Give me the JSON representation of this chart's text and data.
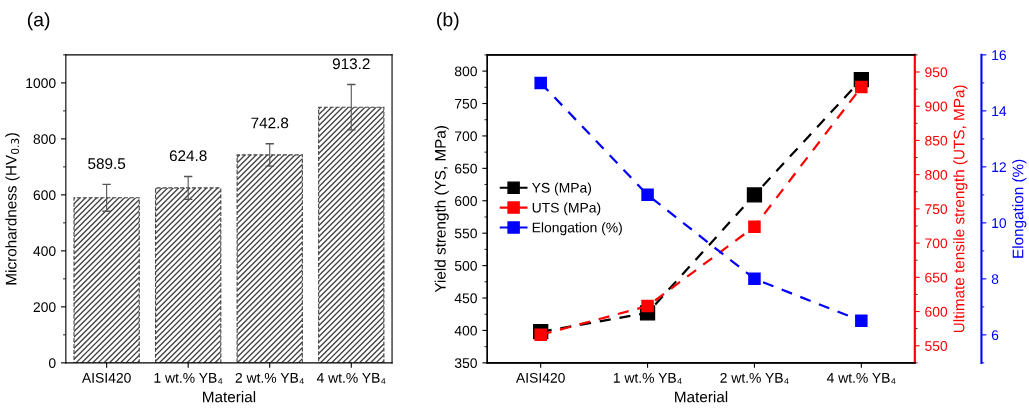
{
  "chart_data": [
    {
      "type": "bar",
      "title": "(a)",
      "xlabel": "Material",
      "ylabel": "Microhardness (HV$_{0.3}$)",
      "categories": [
        "AISI420",
        "1 wt.% YB₄",
        "2 wt.% YB₄",
        "4 wt.% YB₄"
      ],
      "values": [
        589.5,
        624.8,
        742.8,
        913.2
      ],
      "errors": [
        48,
        41,
        40,
        81
      ],
      "color": "#444444",
      "data_labels": true,
      "ylim": [
        0,
        1100
      ],
      "yticks": [
        0,
        200,
        400,
        600,
        800,
        1000
      ],
      "grid": false
    },
    {
      "type": "line",
      "title": "(b)",
      "xlabel": "Material",
      "ylabel": "Yield strength (YS, MPa)",
      "y2label": "Ultimate tensile strength (UTS, MPa)",
      "y3label": "Elongation (%)",
      "categories": [
        "AISI420",
        "1 wt.% YB₄",
        "2 wt.% YB₄",
        "4 wt.% YB₄"
      ],
      "series": [
        {
          "name": "YS (MPa)",
          "color": "#000000",
          "values": [
            398,
            427,
            609,
            787
          ]
        },
        {
          "name": "UTS (MPa)",
          "color": "#ff0000",
          "values": [
            566,
            608,
            724,
            928
          ],
          "axis": "y2"
        },
        {
          "name": "Elongation (%)",
          "color": "#0000ff",
          "values": [
            15,
            11,
            8,
            6.5
          ],
          "axis": "y3"
        }
      ],
      "ylim": [
        350,
        825
      ],
      "yticks": [
        350,
        400,
        450,
        500,
        550,
        600,
        650,
        700,
        750,
        800
      ],
      "y2lim": [
        525,
        975
      ],
      "y2ticks": [
        550,
        600,
        650,
        700,
        750,
        800,
        850,
        900,
        950
      ],
      "y3lim": [
        5,
        16
      ],
      "y3ticks": [
        6,
        8,
        10,
        12,
        14,
        16
      ],
      "marker": "square",
      "line_style": "dashed",
      "legend": "left",
      "grid": false
    }
  ]
}
